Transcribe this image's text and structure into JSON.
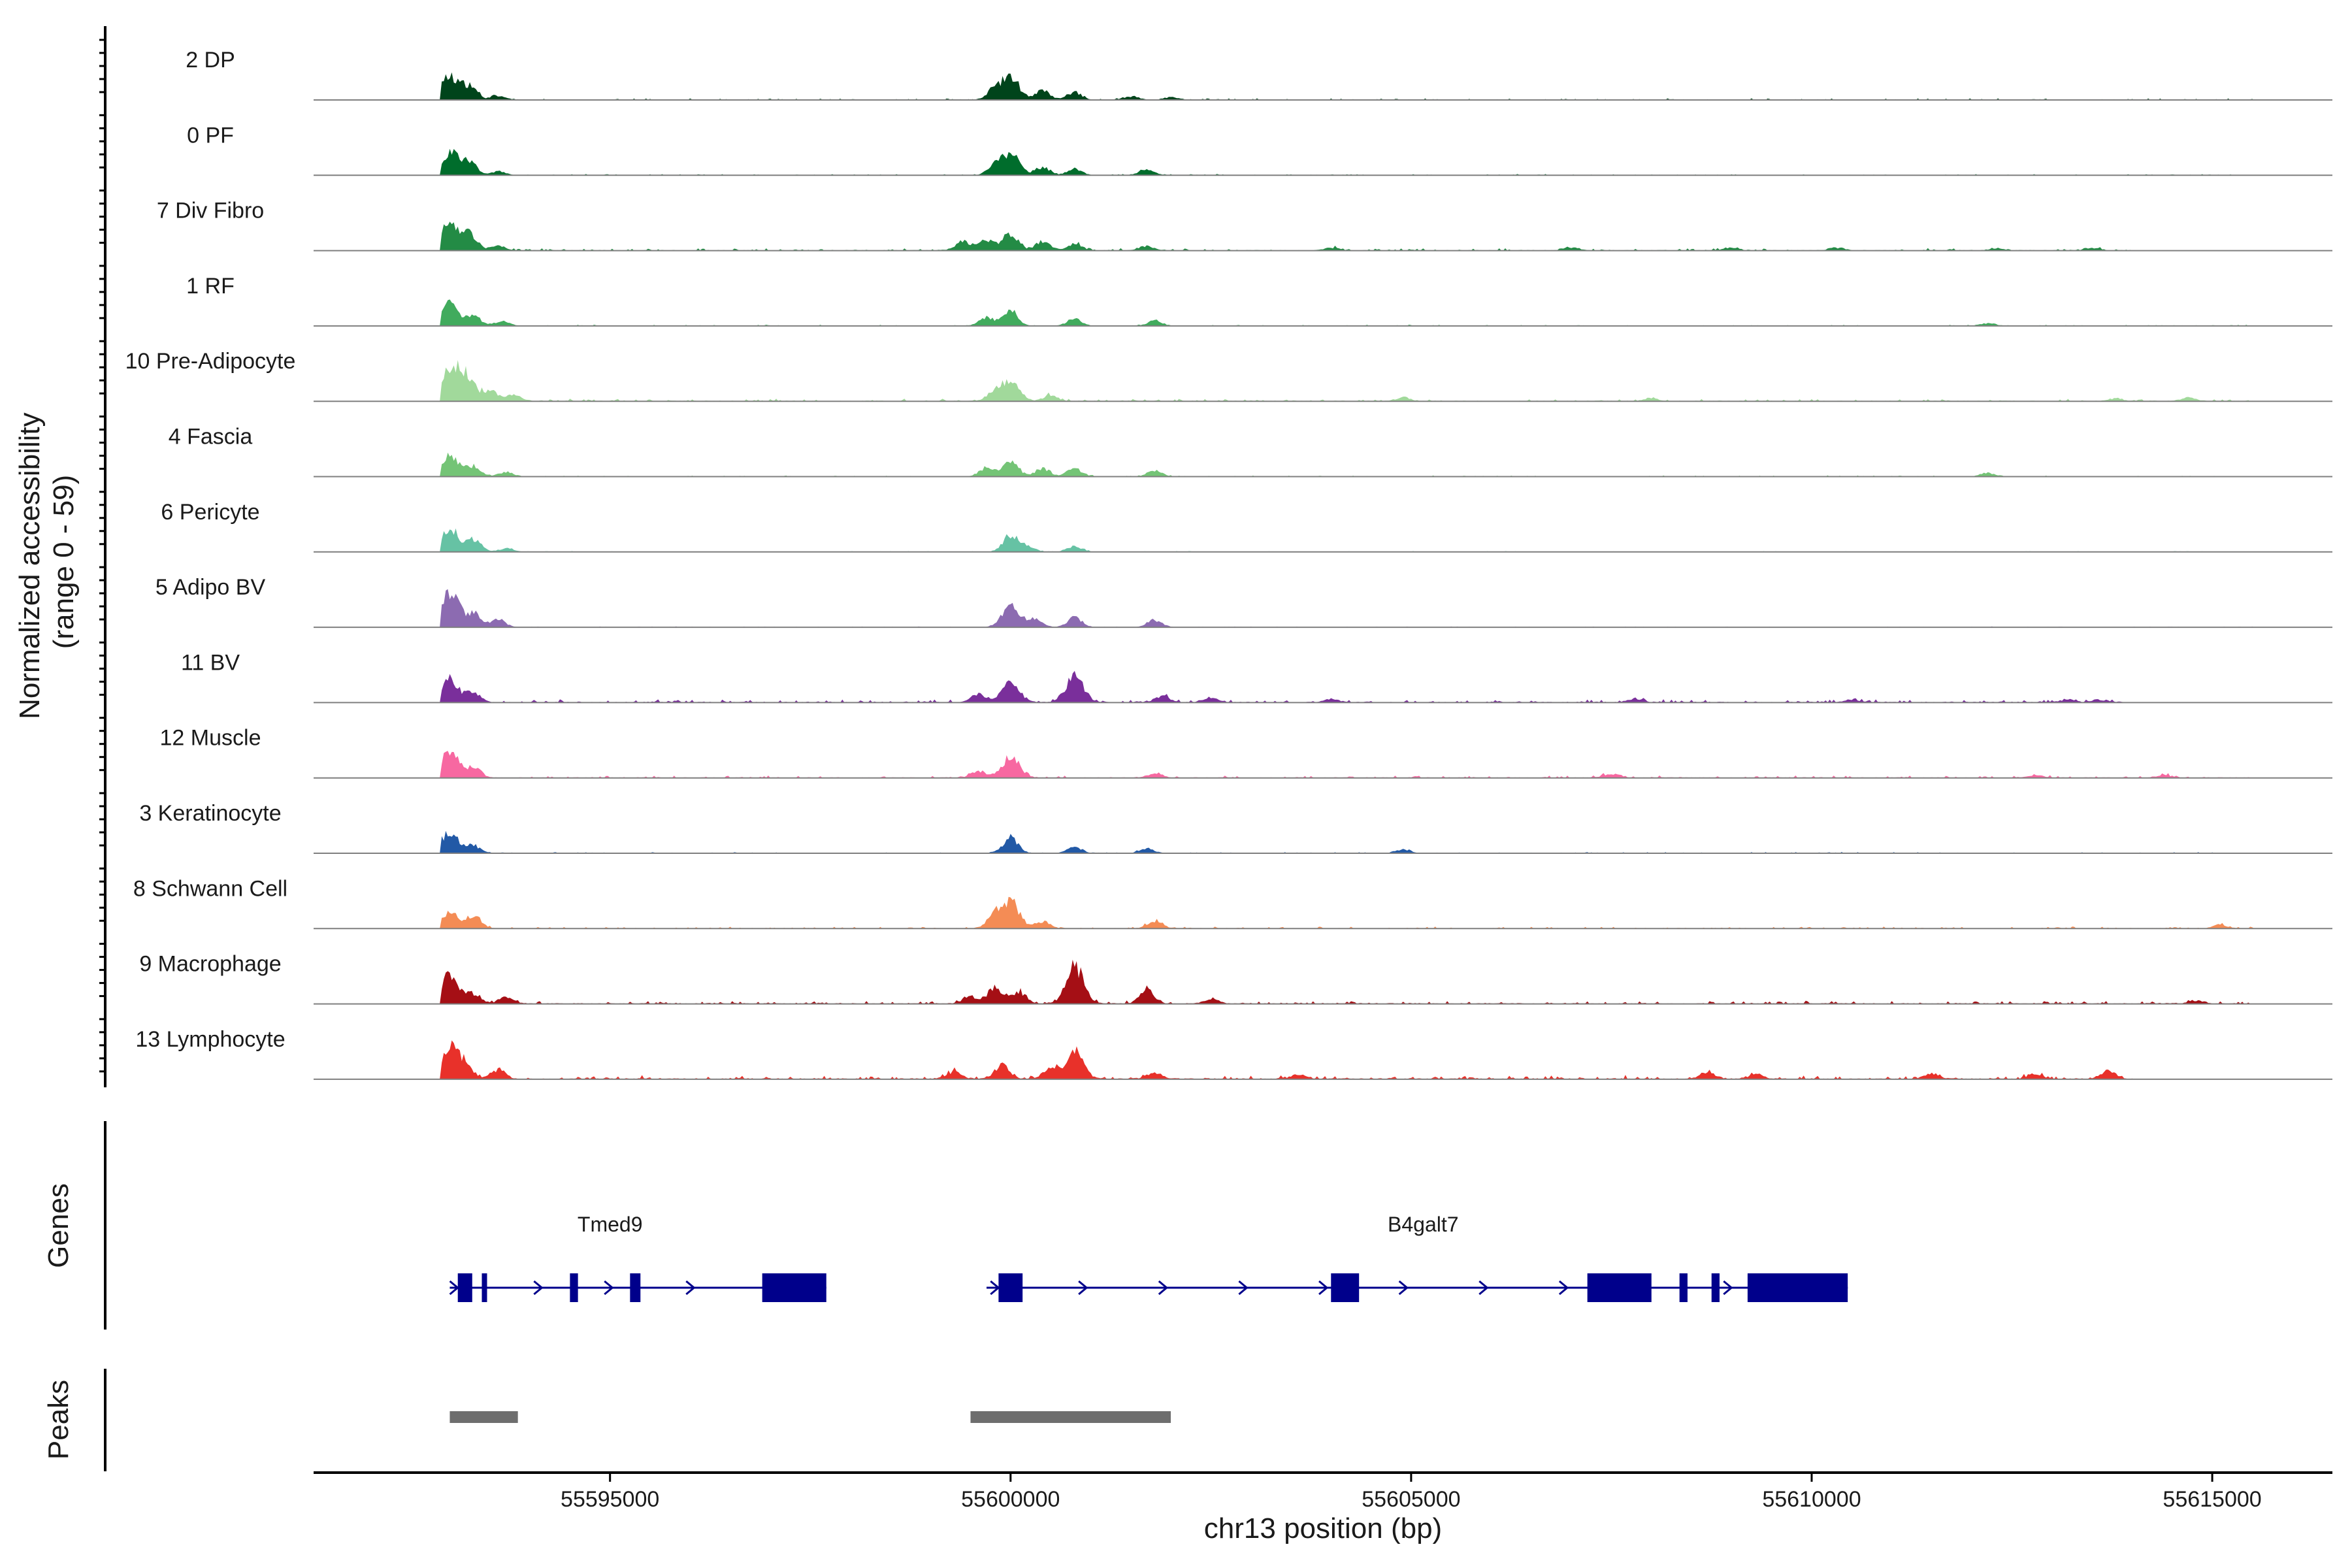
{
  "chart_data": {
    "type": "area",
    "title": "",
    "xlabel": "chr13 position (bp)",
    "ylabel": "Normalized accessibility\n(range 0 - 59)",
    "ylabel_lines": [
      "Normalized accessibility",
      "(range 0 - 59)"
    ],
    "xlim": [
      55591300,
      55616500
    ],
    "ylim": [
      0,
      59
    ],
    "x_ticks": [
      55595000,
      55600000,
      55605000,
      55610000,
      55615000
    ],
    "x_tick_labels": [
      "55595000",
      "55600000",
      "55605000",
      "55610000",
      "55615000"
    ],
    "grid": false,
    "legend": "none",
    "tracks": [
      {
        "name": "2 DP",
        "color": "#00441b",
        "scale": 0.85,
        "peaks": [
          [
            55593000,
            52
          ],
          [
            55593250,
            30
          ],
          [
            55593600,
            8
          ],
          [
            55600000,
            48
          ],
          [
            55599800,
            22
          ],
          [
            55600400,
            20
          ],
          [
            55600800,
            16
          ],
          [
            55601500,
            8
          ],
          [
            55602000,
            6
          ]
        ],
        "noise": [
          [
            55592900,
            55615500,
            2
          ]
        ]
      },
      {
        "name": "0 PF",
        "color": "#006d2c",
        "scale": 0.85,
        "peaks": [
          [
            55593000,
            50
          ],
          [
            55593250,
            28
          ],
          [
            55593600,
            8
          ],
          [
            55600000,
            46
          ],
          [
            55599800,
            20
          ],
          [
            55600400,
            18
          ],
          [
            55600800,
            14
          ],
          [
            55601700,
            12
          ]
        ],
        "noise": [
          [
            55592900,
            55615500,
            1.5
          ]
        ]
      },
      {
        "name": "7 Div Fibro",
        "color": "#238b45",
        "scale": 0.85,
        "peaks": [
          [
            55593000,
            54
          ],
          [
            55593250,
            34
          ],
          [
            55593600,
            10
          ],
          [
            55600000,
            40
          ],
          [
            55599700,
            25
          ],
          [
            55599400,
            20
          ],
          [
            55600400,
            20
          ],
          [
            55600800,
            14
          ],
          [
            55601700,
            10
          ],
          [
            55604000,
            6
          ],
          [
            55607000,
            7
          ],
          [
            55609000,
            6
          ],
          [
            55610300,
            6
          ],
          [
            55612300,
            5
          ],
          [
            55613500,
            5
          ]
        ],
        "noise": [
          [
            55592900,
            55614000,
            3
          ]
        ]
      },
      {
        "name": "1 RF",
        "color": "#41ab5d",
        "scale": 0.85,
        "peaks": [
          [
            55593000,
            48
          ],
          [
            55593300,
            22
          ],
          [
            55593650,
            10
          ],
          [
            55600000,
            36
          ],
          [
            55599700,
            18
          ],
          [
            55600800,
            16
          ],
          [
            55601800,
            12
          ],
          [
            55612200,
            6
          ]
        ],
        "noise": [
          [
            55592900,
            55615500,
            1.5
          ]
        ]
      },
      {
        "name": "10 Pre-Adipocyte",
        "color": "#a1d99b",
        "scale": 0.85,
        "peaks": [
          [
            55593000,
            70
          ],
          [
            55593200,
            50
          ],
          [
            55593500,
            25
          ],
          [
            55593800,
            15
          ],
          [
            55600000,
            42
          ],
          [
            55599800,
            20
          ],
          [
            55600500,
            12
          ],
          [
            55604900,
            8
          ],
          [
            55608000,
            6
          ],
          [
            55613800,
            6
          ],
          [
            55614700,
            8
          ]
        ],
        "noise": [
          [
            55592900,
            55615500,
            3
          ]
        ]
      },
      {
        "name": "4 Fascia",
        "color": "#74c476",
        "scale": 0.85,
        "peaks": [
          [
            55593000,
            46
          ],
          [
            55593300,
            22
          ],
          [
            55593700,
            10
          ],
          [
            55600000,
            40
          ],
          [
            55599700,
            20
          ],
          [
            55600400,
            18
          ],
          [
            55600800,
            18
          ],
          [
            55601800,
            12
          ],
          [
            55612200,
            8
          ]
        ],
        "noise": [
          [
            55592900,
            55615500,
            1.5
          ]
        ]
      },
      {
        "name": "6 Pericyte",
        "color": "#66c2a4",
        "scale": 0.85,
        "peaks": [
          [
            55593000,
            52
          ],
          [
            55593300,
            26
          ],
          [
            55593700,
            8
          ],
          [
            55600000,
            38
          ],
          [
            55600200,
            14
          ],
          [
            55600800,
            12
          ]
        ],
        "noise": [
          [
            55592900,
            55615500,
            1
          ]
        ]
      },
      {
        "name": "5 Adipo BV",
        "color": "#8c6bb1",
        "scale": 0.85,
        "peaks": [
          [
            55593000,
            80
          ],
          [
            55593300,
            30
          ],
          [
            55593600,
            18
          ],
          [
            55600000,
            46
          ],
          [
            55600300,
            20
          ],
          [
            55600800,
            22
          ],
          [
            55601800,
            16
          ]
        ],
        "noise": [
          [
            55592900,
            55615500,
            1
          ]
        ]
      },
      {
        "name": "11 BV",
        "color": "#7a2f9b",
        "scale": 0.85,
        "peaks": [
          [
            55593000,
            52
          ],
          [
            55593300,
            20
          ],
          [
            55600000,
            42
          ],
          [
            55600800,
            58
          ],
          [
            55599600,
            18
          ],
          [
            55601900,
            14
          ],
          [
            55602500,
            10
          ],
          [
            55604000,
            8
          ],
          [
            55607800,
            8
          ],
          [
            55610500,
            6
          ],
          [
            55613200,
            6
          ],
          [
            55613600,
            6
          ]
        ],
        "noise": [
          [
            55592900,
            55614000,
            4
          ]
        ]
      },
      {
        "name": "12 Muscle",
        "color": "#f768a1",
        "scale": 0.85,
        "peaks": [
          [
            55593000,
            56
          ],
          [
            55593300,
            24
          ],
          [
            55600000,
            46
          ],
          [
            55599600,
            14
          ],
          [
            55601800,
            10
          ],
          [
            55607500,
            8
          ],
          [
            55612800,
            6
          ],
          [
            55614400,
            6
          ]
        ],
        "noise": [
          [
            55592900,
            55615500,
            3
          ]
        ]
      },
      {
        "name": "3 Keratinocyte",
        "color": "#2259a6",
        "scale": 0.85,
        "peaks": [
          [
            55593000,
            46
          ],
          [
            55593300,
            16
          ],
          [
            55600000,
            36
          ],
          [
            55600800,
            14
          ],
          [
            55601700,
            10
          ],
          [
            55604900,
            8
          ]
        ],
        "noise": [
          [
            55592900,
            55615500,
            1.5
          ]
        ]
      },
      {
        "name": "8 Schwann Cell",
        "color": "#f48c55",
        "scale": 0.85,
        "peaks": [
          [
            55593000,
            40
          ],
          [
            55593300,
            30
          ],
          [
            55600000,
            60
          ],
          [
            55599800,
            26
          ],
          [
            55600400,
            16
          ],
          [
            55601800,
            18
          ],
          [
            55615100,
            8
          ]
        ],
        "noise": [
          [
            55592900,
            55615500,
            2.5
          ]
        ]
      },
      {
        "name": "9 Macrophage",
        "color": "#a50f15",
        "scale": 0.85,
        "peaks": [
          [
            55593000,
            66
          ],
          [
            55593300,
            20
          ],
          [
            55593700,
            14
          ],
          [
            55599800,
            36
          ],
          [
            55600100,
            26
          ],
          [
            55600800,
            82
          ],
          [
            55601700,
            30
          ],
          [
            55599500,
            16
          ],
          [
            55602500,
            10
          ],
          [
            55614800,
            6
          ]
        ],
        "noise": [
          [
            55592900,
            55615500,
            4
          ]
        ]
      },
      {
        "name": "13 Lymphocyte",
        "color": "#e8312a",
        "scale": 0.85,
        "peaks": [
          [
            55593000,
            68
          ],
          [
            55593200,
            30
          ],
          [
            55593600,
            20
          ],
          [
            55599900,
            32
          ],
          [
            55600800,
            62
          ],
          [
            55600500,
            22
          ],
          [
            55599300,
            16
          ],
          [
            55601800,
            12
          ],
          [
            55603600,
            10
          ],
          [
            55608700,
            14
          ],
          [
            55609300,
            10
          ],
          [
            55611500,
            12
          ],
          [
            55612800,
            10
          ],
          [
            55613700,
            18
          ]
        ],
        "noise": [
          [
            55592900,
            55614000,
            5
          ]
        ]
      }
    ],
    "genes": [
      {
        "name": "Tmed9",
        "start": 55593000,
        "end": 55597700,
        "strand": "+",
        "exons": [
          [
            55593100,
            55593280
          ],
          [
            55593400,
            55593460
          ],
          [
            55594500,
            55594600
          ],
          [
            55595250,
            55595380
          ],
          [
            55596900,
            55597700
          ]
        ],
        "arrows": [
          55593050,
          55594100,
          55594980,
          55596000
        ]
      },
      {
        "name": "B4galt7",
        "start": 55599700,
        "end": 55610500,
        "strand": "+",
        "exons": [
          [
            55599850,
            55600150
          ],
          [
            55604000,
            55604350
          ],
          [
            55607200,
            55608000
          ],
          [
            55608350,
            55608450
          ],
          [
            55608750,
            55608850
          ],
          [
            55609200,
            55610450
          ]
        ],
        "arrows": [
          55599800,
          55600900,
          55601900,
          55602900,
          55603900,
          55604900,
          55605900,
          55606900,
          55608950
        ]
      }
    ],
    "peaks_track": [
      [
        55593000,
        55593850
      ],
      [
        55599500,
        55602000
      ]
    ],
    "panel_labels": {
      "genes": "Genes",
      "peaks": "Peaks"
    }
  },
  "colors": {
    "gene": "#00008b",
    "peak_bar": "#6e6e6e",
    "baseline": "#7f7f7f",
    "axis": "#000000"
  }
}
